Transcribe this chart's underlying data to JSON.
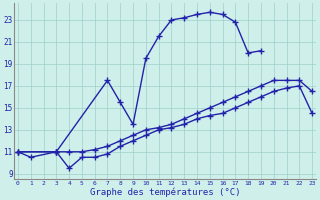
{
  "title": "Graphe des températures (°C)",
  "bg_color": "#cff0ea",
  "line_color": "#2222aa",
  "grid_color": "#9dcfc8",
  "yticks": [
    9,
    11,
    13,
    15,
    17,
    19,
    21,
    23
  ],
  "ylim": [
    8.5,
    24.5
  ],
  "xlim": [
    -0.3,
    23.3
  ],
  "curve1_x": [
    0,
    3,
    7,
    8,
    9,
    10,
    11,
    12,
    13,
    14,
    15,
    16,
    17,
    18,
    19
  ],
  "curve1_y": [
    11,
    11,
    17.5,
    15.5,
    13.5,
    19.5,
    21.5,
    23.0,
    23.2,
    23.5,
    23.7,
    23.5,
    22.8,
    20.0,
    20.2
  ],
  "curve2_x": [
    0,
    3,
    4,
    5,
    6,
    7,
    8,
    9,
    10,
    11,
    12,
    13,
    14,
    15,
    16,
    17,
    18,
    19,
    20,
    21,
    22,
    23
  ],
  "curve2_y": [
    11,
    11,
    11,
    11,
    11.2,
    11.5,
    12,
    12.5,
    13,
    13.2,
    13.5,
    14,
    14.5,
    15,
    15.5,
    16,
    16.5,
    17,
    17.5,
    17.5,
    17.5,
    16.5
  ],
  "curve3_x": [
    0,
    1,
    3,
    4,
    5,
    6,
    7,
    8,
    9,
    10,
    11,
    12,
    13,
    14,
    15,
    16,
    17,
    18,
    19,
    20,
    21,
    22,
    23
  ],
  "curve3_y": [
    11,
    10.5,
    11,
    9.5,
    10.5,
    10.5,
    10.8,
    11.5,
    12,
    12.5,
    13,
    13.2,
    13.5,
    14,
    14.3,
    14.5,
    15,
    15.5,
    16,
    16.5,
    16.8,
    17,
    14.5
  ]
}
